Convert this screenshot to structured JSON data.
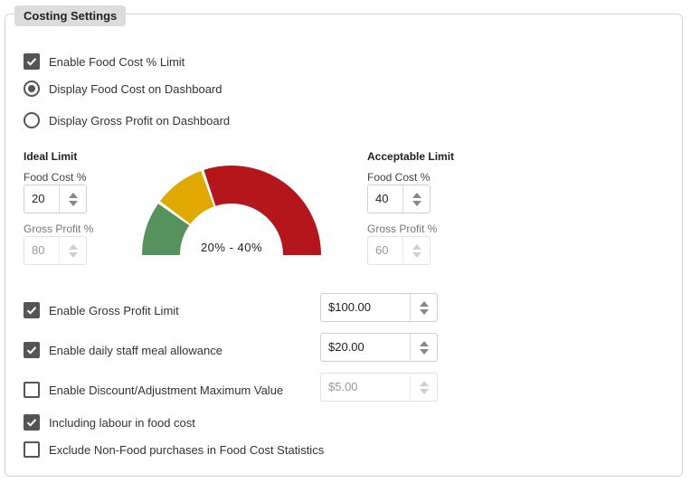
{
  "legend": "Costing Settings",
  "options": {
    "food_cost_limit": {
      "label": "Enable Food Cost % Limit",
      "checked": true
    },
    "display_food_cost": {
      "label": "Display Food Cost on Dashboard",
      "selected": true
    },
    "display_gross_profit": {
      "label": "Display Gross Profit on Dashboard",
      "selected": false
    }
  },
  "ideal": {
    "heading": "Ideal Limit",
    "food_cost_label": "Food Cost %",
    "food_cost_value": "20",
    "gross_profit_label": "Gross Profit %",
    "gross_profit_value": "80"
  },
  "acceptable": {
    "heading": "Acceptable Limit",
    "food_cost_label": "Food Cost %",
    "food_cost_value": "40",
    "gross_profit_label": "Gross Profit %",
    "gross_profit_value": "60"
  },
  "gauge": {
    "text": "20% - 40%",
    "colors": {
      "green": "#56925e",
      "yellow": "#e0a800",
      "red": "#b5161b"
    }
  },
  "limits": {
    "gross_profit": {
      "label": "Enable Gross Profit Limit",
      "checked": true,
      "value": "$100.00"
    },
    "staff_meal": {
      "label": "Enable daily staff meal allowance",
      "checked": true,
      "value": "$20.00"
    },
    "discount": {
      "label": "Enable Discount/Adjustment Maximum Value",
      "checked": false,
      "value": "$5.00"
    },
    "labour": {
      "label": "Including labour in food cost",
      "checked": true
    },
    "non_food": {
      "label": "Exclude Non-Food purchases in Food Cost Statistics",
      "checked": false
    }
  }
}
